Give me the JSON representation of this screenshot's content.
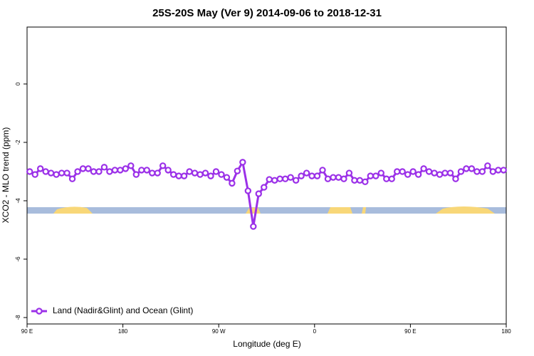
{
  "chart_data": {
    "type": "line",
    "title": "25S-20S May (Ver 9)   2014-09-06 to 2018-12-31",
    "xlabel": "Longitude (deg E)",
    "ylabel": "XCO2 - MLO trend (ppm)",
    "x": [
      92.5,
      97.5,
      102.5,
      107.5,
      112.5,
      117.5,
      122.5,
      127.5,
      132.5,
      137.5,
      142.5,
      147.5,
      152.5,
      157.5,
      162.5,
      167.5,
      172.5,
      177.5,
      182.5,
      187.5,
      192.5,
      197.5,
      202.5,
      207.5,
      212.5,
      217.5,
      222.5,
      227.5,
      232.5,
      237.5,
      242.5,
      247.5,
      252.5,
      257.5,
      262.5,
      267.5,
      272.5,
      277.5,
      282.5,
      287.5,
      292.5,
      297.5,
      302.5,
      307.5,
      312.5,
      317.5,
      322.5,
      327.5,
      332.5,
      337.5,
      342.5,
      347.5,
      352.5,
      357.5,
      362.5,
      367.5,
      372.5,
      377.5,
      382.5,
      387.5,
      392.5,
      397.5,
      402.5,
      407.5,
      412.5,
      417.5,
      422.5,
      427.5,
      432.5,
      437.5,
      442.5,
      447.5,
      452.5,
      457.5,
      462.5,
      467.5,
      472.5,
      477.5,
      482.5,
      487.5,
      492.5,
      497.5,
      502.5,
      507.5,
      512.5,
      517.5,
      522.5,
      527.5,
      532.5,
      537.5
    ],
    "series": [
      {
        "name": "Land (Nadir&Glint) and Ocean (Glint)",
        "color": "#9b30e8",
        "values": [
          -3.0,
          -3.1,
          -2.9,
          -3.0,
          -3.05,
          -3.1,
          -3.05,
          -3.05,
          -3.25,
          -3.0,
          -2.9,
          -2.9,
          -3.0,
          -3.0,
          -2.85,
          -3.0,
          -2.95,
          -2.95,
          -2.9,
          -2.8,
          -3.1,
          -2.95,
          -2.95,
          -3.05,
          -3.05,
          -2.8,
          -2.95,
          -3.1,
          -3.15,
          -3.15,
          -3.0,
          -3.05,
          -3.1,
          -3.05,
          -3.15,
          -3.0,
          -3.1,
          -3.2,
          -3.4,
          -2.98,
          -2.68,
          -3.66,
          -4.88,
          -3.76,
          -3.54,
          -3.27,
          -3.3,
          -3.25,
          -3.25,
          -3.2,
          -3.3,
          -3.15,
          -3.05,
          -3.15,
          -3.15,
          -2.95,
          -3.25,
          -3.2,
          -3.2,
          -3.25,
          -3.05,
          -3.3,
          -3.3,
          -3.35,
          -3.15,
          -3.15,
          -3.05,
          -3.25,
          -3.25,
          -3.0,
          -3.0,
          -3.1,
          -3.0,
          -3.1,
          -2.9,
          -3.0,
          -3.05,
          -3.1,
          -3.05,
          -3.05,
          -3.25,
          -3.0,
          -2.9,
          -2.9,
          -3.0,
          -3.0,
          -2.8,
          -3.0,
          -2.95,
          -2.95
        ]
      }
    ],
    "xlim": [
      90,
      540
    ],
    "ylim": [
      -8.22,
      1.95
    ],
    "xticks": [
      {
        "value": 90,
        "label": "90 E"
      },
      180,
      {
        "value": 270,
        "label": "90 W"
      },
      {
        "value": 360,
        "label": "0"
      },
      {
        "value": 450,
        "label": "90 E"
      },
      {
        "value": 540,
        "label": "180"
      }
    ],
    "yticks": [
      0,
      -2,
      -4,
      -6,
      -8
    ],
    "legend": "lower left"
  }
}
